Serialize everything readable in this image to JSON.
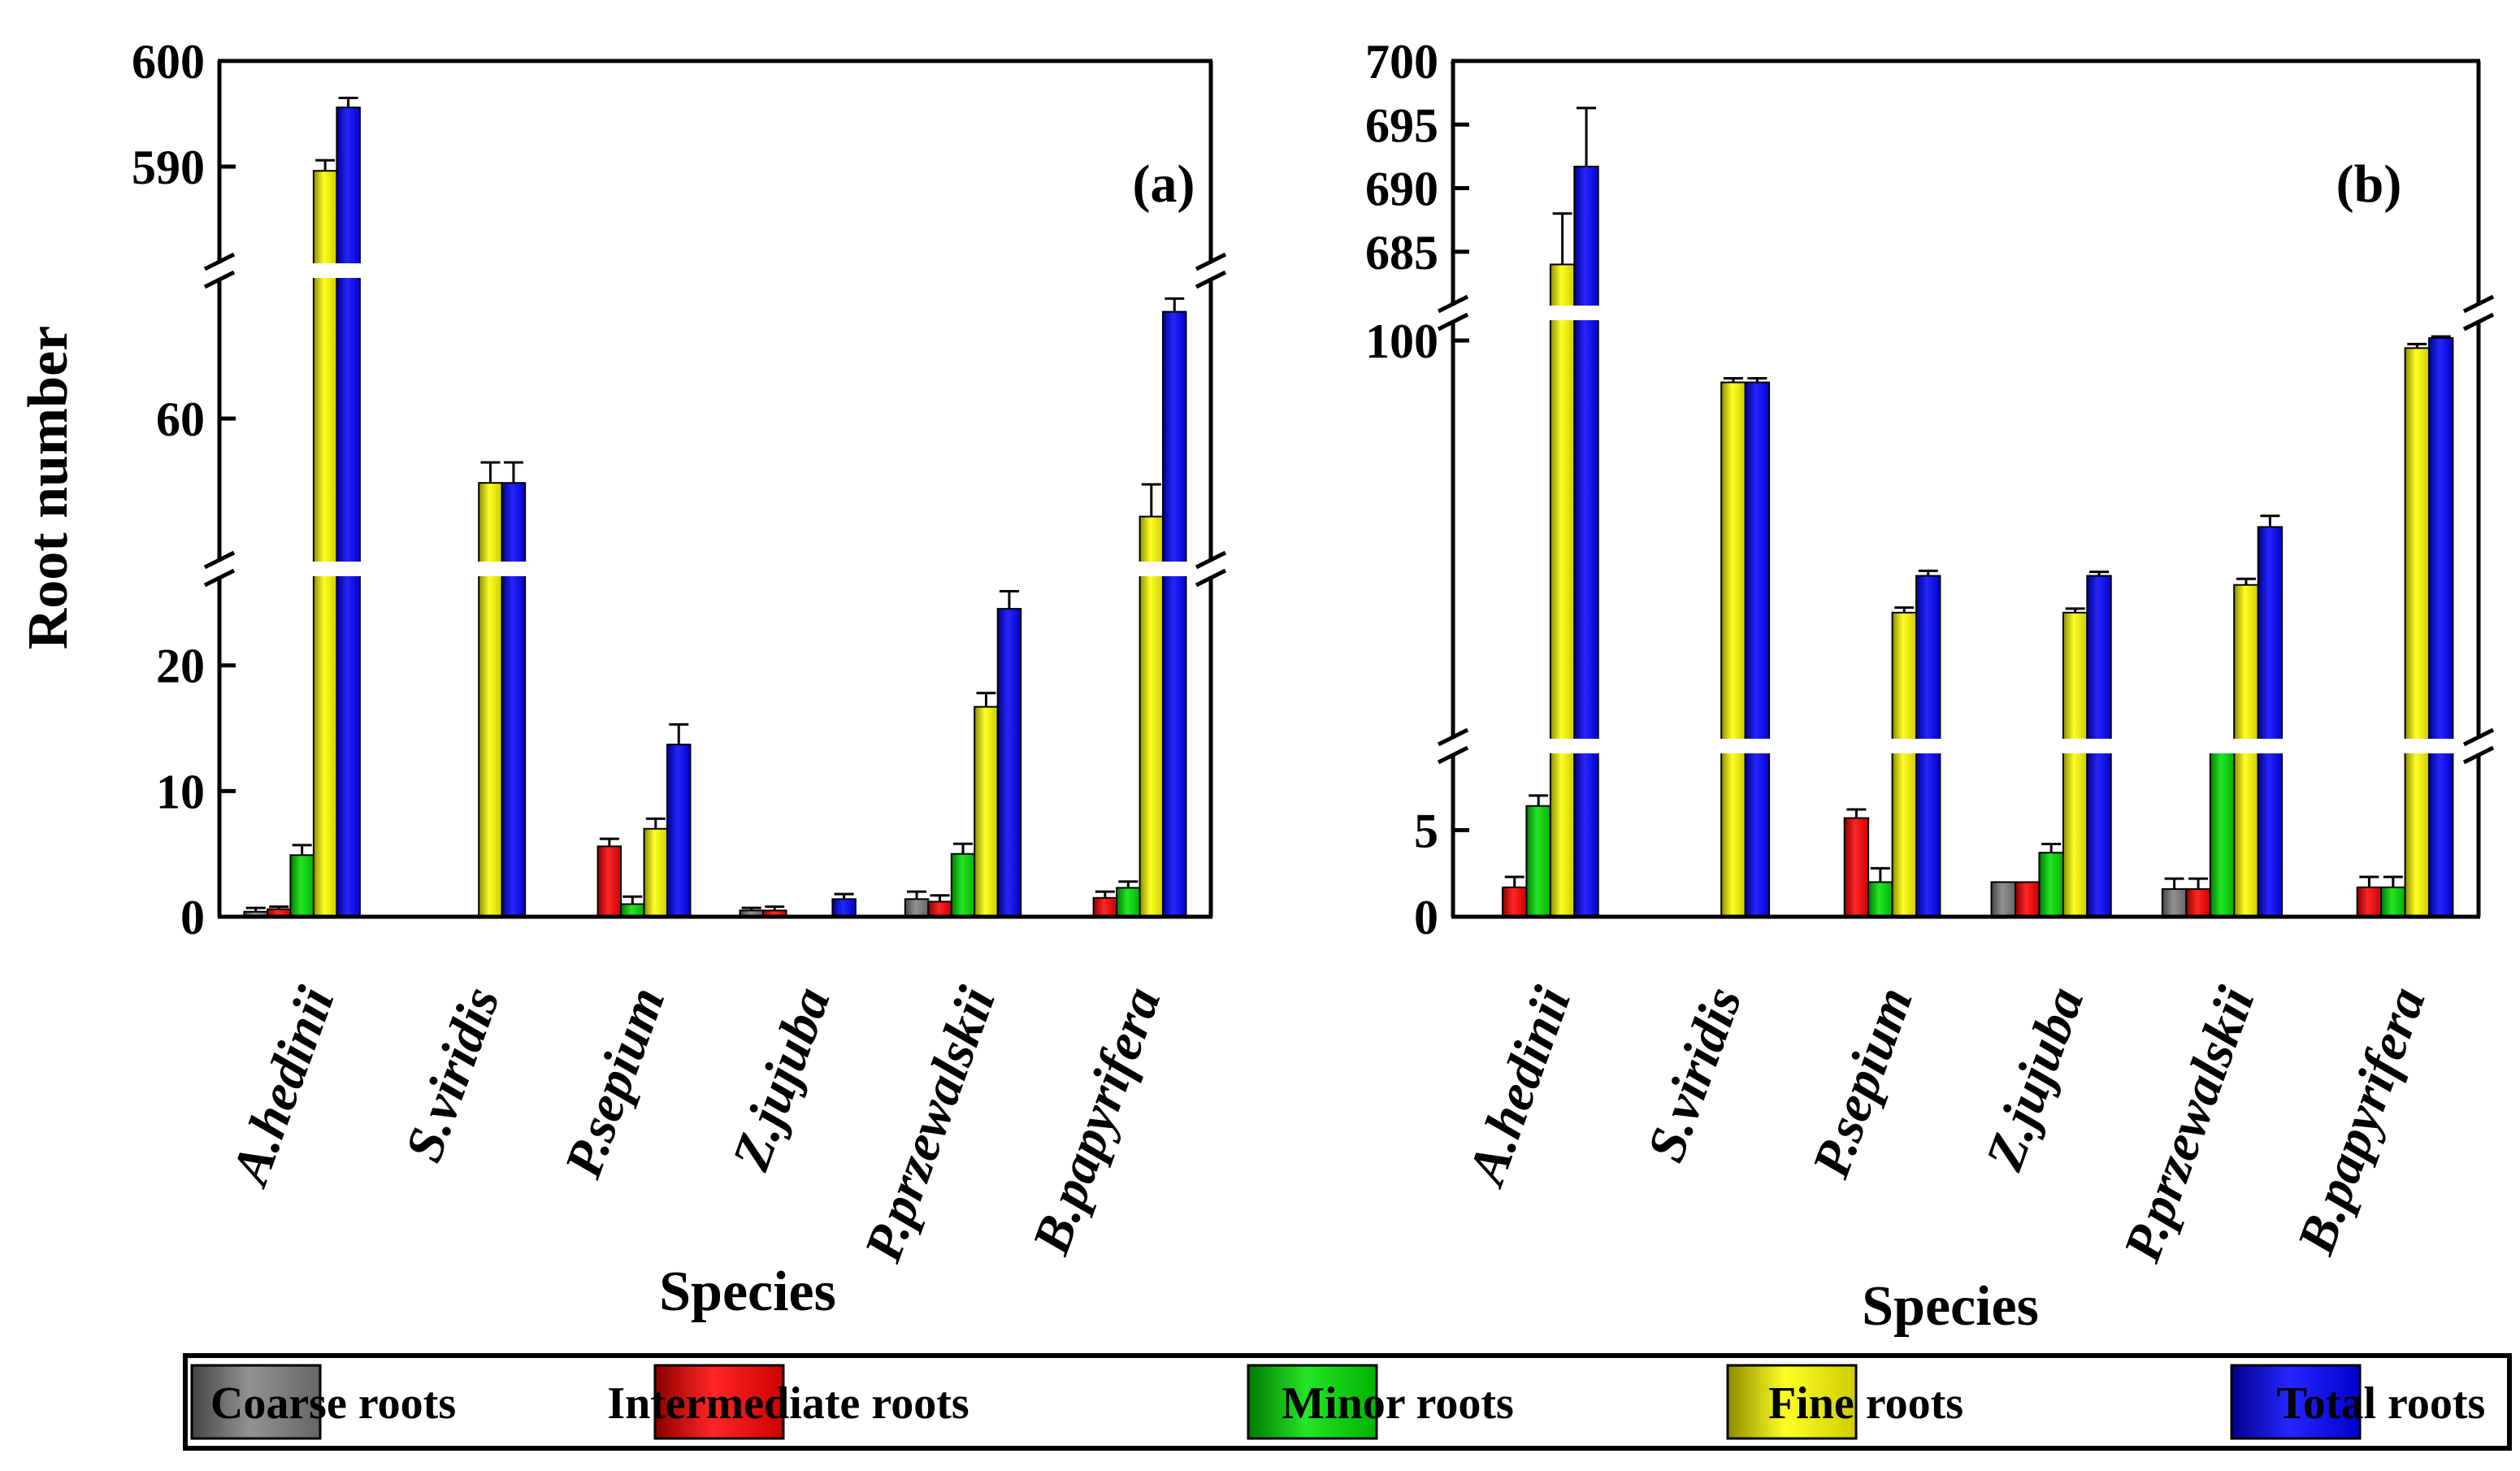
{
  "chart_data": [
    {
      "panel_label": "(a)",
      "type": "bar",
      "ylabel": "Root number",
      "xlabel": "Species",
      "categories": [
        "A.hedinii",
        "S.viridis",
        "P.sepium",
        "Z.jujuba",
        "P.przewalskii",
        "B.papyrifera"
      ],
      "y_segments": [
        {
          "range": [
            0,
            28
          ],
          "ticks": [
            0,
            10,
            20
          ]
        },
        {
          "range": [
            50,
            70
          ],
          "ticks": [
            60
          ]
        },
        {
          "range": [
            580,
            600
          ],
          "ticks": [
            590,
            600
          ]
        }
      ],
      "series": [
        {
          "name": "Coarse roots",
          "color": "#7f7f7f",
          "values": [
            0.4,
            0,
            0,
            0.5,
            1.4,
            0
          ],
          "errors": [
            0.3,
            0,
            0,
            0.2,
            0.6,
            0
          ]
        },
        {
          "name": "Intermediate roots",
          "color": "#ff0000",
          "values": [
            0.6,
            0,
            5.6,
            0.5,
            1.2,
            1.5
          ],
          "errors": [
            0.2,
            0,
            0.6,
            0.3,
            0.5,
            0.5
          ]
        },
        {
          "name": "Minor roots",
          "color": "#00e000",
          "values": [
            4.9,
            0,
            1.0,
            0,
            5.0,
            2.3
          ],
          "errors": [
            0.8,
            0,
            0.6,
            0,
            0.8,
            0.5
          ]
        },
        {
          "name": "Fine roots",
          "color": "#ffff00",
          "values": [
            589.6,
            55.6,
            7.0,
            0,
            16.7,
            53.3
          ],
          "errors": [
            1.0,
            1.4,
            0.8,
            0,
            1.1,
            2.2
          ]
        },
        {
          "name": "Total roots",
          "color": "#0000ff",
          "values": [
            595.6,
            55.6,
            13.7,
            1.4,
            24.5,
            67.3
          ],
          "errors": [
            0.9,
            1.4,
            1.6,
            0.4,
            1.4,
            0.9
          ]
        }
      ]
    },
    {
      "panel_label": "(b)",
      "type": "bar",
      "ylabel": "",
      "xlabel": "Species",
      "categories": [
        "A.hedinii",
        "S.viridis",
        "P.sepium",
        "Z.jujuba",
        "P.przewalskii",
        "B.papyrifera"
      ],
      "y_segments": [
        {
          "range": [
            0,
            10
          ],
          "ticks": [
            0,
            5
          ]
        },
        {
          "range": [
            20,
            105
          ],
          "ticks": [
            100
          ]
        },
        {
          "range": [
            680,
            700
          ],
          "ticks": [
            685,
            690,
            695,
            700
          ]
        }
      ],
      "series": [
        {
          "name": "Coarse roots",
          "color": "#7f7f7f",
          "values": [
            0,
            0,
            0,
            2.0,
            1.6,
            0
          ],
          "errors": [
            0,
            0,
            0,
            0,
            0.6,
            0
          ]
        },
        {
          "name": "Intermediate roots",
          "color": "#ff0000",
          "values": [
            1.7,
            0,
            5.7,
            2.0,
            1.6,
            1.7
          ],
          "errors": [
            0.6,
            0,
            0.5,
            0,
            0.6,
            0.6
          ]
        },
        {
          "name": "Minor roots",
          "color": "#00e000",
          "values": [
            6.4,
            0,
            2.0,
            3.7,
            13,
            1.7
          ],
          "errors": [
            0.6,
            0,
            0.8,
            0.5,
            1.2,
            0.6
          ]
        },
        {
          "name": "Fine roots",
          "color": "#ffff00",
          "values": [
            684,
            91.7,
            46,
            46,
            51.5,
            98.5
          ],
          "errors": [
            4.0,
            0.8,
            1.0,
            0.8,
            1.2,
            0.8
          ]
        },
        {
          "name": "Total roots",
          "color": "#0000ff",
          "values": [
            691.7,
            91.7,
            53.3,
            53.3,
            63,
            100.5
          ],
          "errors": [
            4.6,
            0.8,
            1.0,
            0.8,
            2.2,
            0.3
          ]
        }
      ]
    }
  ],
  "legend": {
    "items": [
      {
        "label": "Coarse roots",
        "color": "#7f7f7f"
      },
      {
        "label": "Intermediate roots",
        "color": "#ff0000"
      },
      {
        "label": "Minor roots",
        "color": "#00e000"
      },
      {
        "label": "Fine roots",
        "color": "#ffff00"
      },
      {
        "label": "Total roots",
        "color": "#0000ff"
      }
    ]
  }
}
